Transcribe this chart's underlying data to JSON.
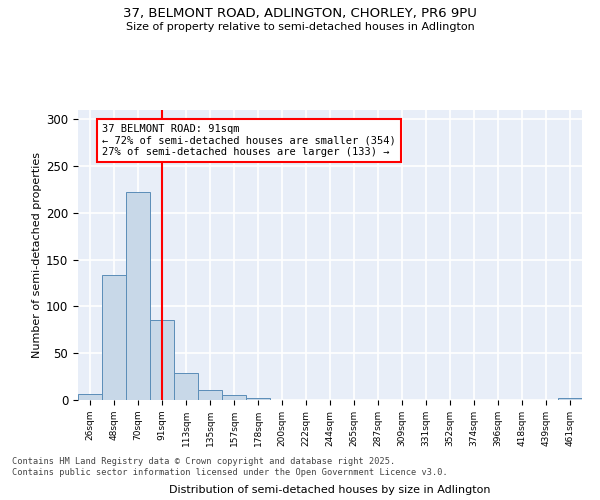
{
  "title1": "37, BELMONT ROAD, ADLINGTON, CHORLEY, PR6 9PU",
  "title2": "Size of property relative to semi-detached houses in Adlington",
  "xlabel": "Distribution of semi-detached houses by size in Adlington",
  "ylabel": "Number of semi-detached properties",
  "bin_labels": [
    "26sqm",
    "48sqm",
    "70sqm",
    "91sqm",
    "113sqm",
    "135sqm",
    "157sqm",
    "178sqm",
    "200sqm",
    "222sqm",
    "244sqm",
    "265sqm",
    "287sqm",
    "309sqm",
    "331sqm",
    "352sqm",
    "374sqm",
    "396sqm",
    "418sqm",
    "439sqm",
    "461sqm"
  ],
  "bar_values": [
    6,
    134,
    222,
    86,
    29,
    11,
    5,
    2,
    0,
    0,
    0,
    0,
    0,
    0,
    0,
    0,
    0,
    0,
    0,
    0,
    2
  ],
  "bar_color": "#c8d8e8",
  "bar_edge_color": "#5b8db8",
  "subject_line_color": "red",
  "annotation_text": "37 BELMONT ROAD: 91sqm\n← 72% of semi-detached houses are smaller (354)\n27% of semi-detached houses are larger (133) →",
  "annotation_box_color": "white",
  "annotation_box_edge_color": "red",
  "ylim": [
    0,
    310
  ],
  "yticks": [
    0,
    50,
    100,
    150,
    200,
    250,
    300
  ],
  "background_color": "#e8eef8",
  "grid_color": "white",
  "footer": "Contains HM Land Registry data © Crown copyright and database right 2025.\nContains public sector information licensed under the Open Government Licence v3.0."
}
